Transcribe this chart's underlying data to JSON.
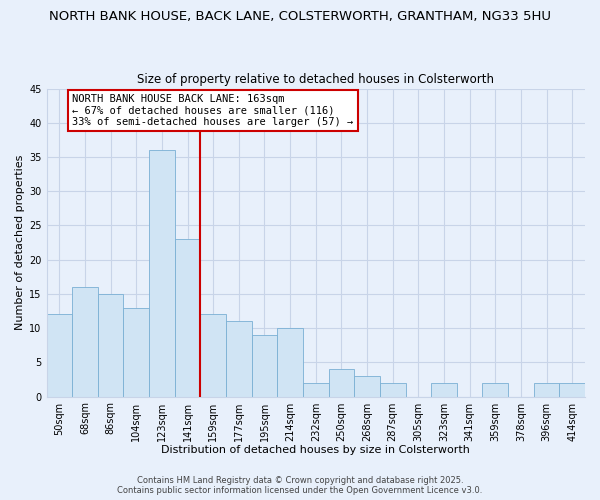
{
  "title": "NORTH BANK HOUSE, BACK LANE, COLSTERWORTH, GRANTHAM, NG33 5HU",
  "subtitle": "Size of property relative to detached houses in Colsterworth",
  "xlabel": "Distribution of detached houses by size in Colsterworth",
  "ylabel": "Number of detached properties",
  "categories": [
    "50sqm",
    "68sqm",
    "86sqm",
    "104sqm",
    "123sqm",
    "141sqm",
    "159sqm",
    "177sqm",
    "195sqm",
    "214sqm",
    "232sqm",
    "250sqm",
    "268sqm",
    "287sqm",
    "305sqm",
    "323sqm",
    "341sqm",
    "359sqm",
    "378sqm",
    "396sqm",
    "414sqm"
  ],
  "values": [
    12,
    16,
    15,
    13,
    36,
    23,
    12,
    11,
    9,
    10,
    2,
    4,
    3,
    2,
    0,
    2,
    0,
    2,
    0,
    2,
    2
  ],
  "bar_color": "#d0e4f4",
  "bar_edge_color": "#7aafd4",
  "vline_x_index": 6,
  "vline_color": "#cc0000",
  "ylim": [
    0,
    45
  ],
  "yticks": [
    0,
    5,
    10,
    15,
    20,
    25,
    30,
    35,
    40,
    45
  ],
  "annotation_title": "NORTH BANK HOUSE BACK LANE: 163sqm",
  "annotation_line1": "← 67% of detached houses are smaller (116)",
  "annotation_line2": "33% of semi-detached houses are larger (57) →",
  "annotation_box_color": "#ffffff",
  "annotation_border_color": "#cc0000",
  "footer_line1": "Contains HM Land Registry data © Crown copyright and database right 2025.",
  "footer_line2": "Contains public sector information licensed under the Open Government Licence v3.0.",
  "background_color": "#e8f0fb",
  "plot_bg_color": "#e8f0fb",
  "grid_color": "#c8d4e8",
  "title_fontsize": 9.5,
  "subtitle_fontsize": 8.5,
  "axis_label_fontsize": 8,
  "tick_fontsize": 7,
  "footer_fontsize": 6,
  "annotation_fontsize": 7.5,
  "annotation_title_fontsize": 7.5
}
